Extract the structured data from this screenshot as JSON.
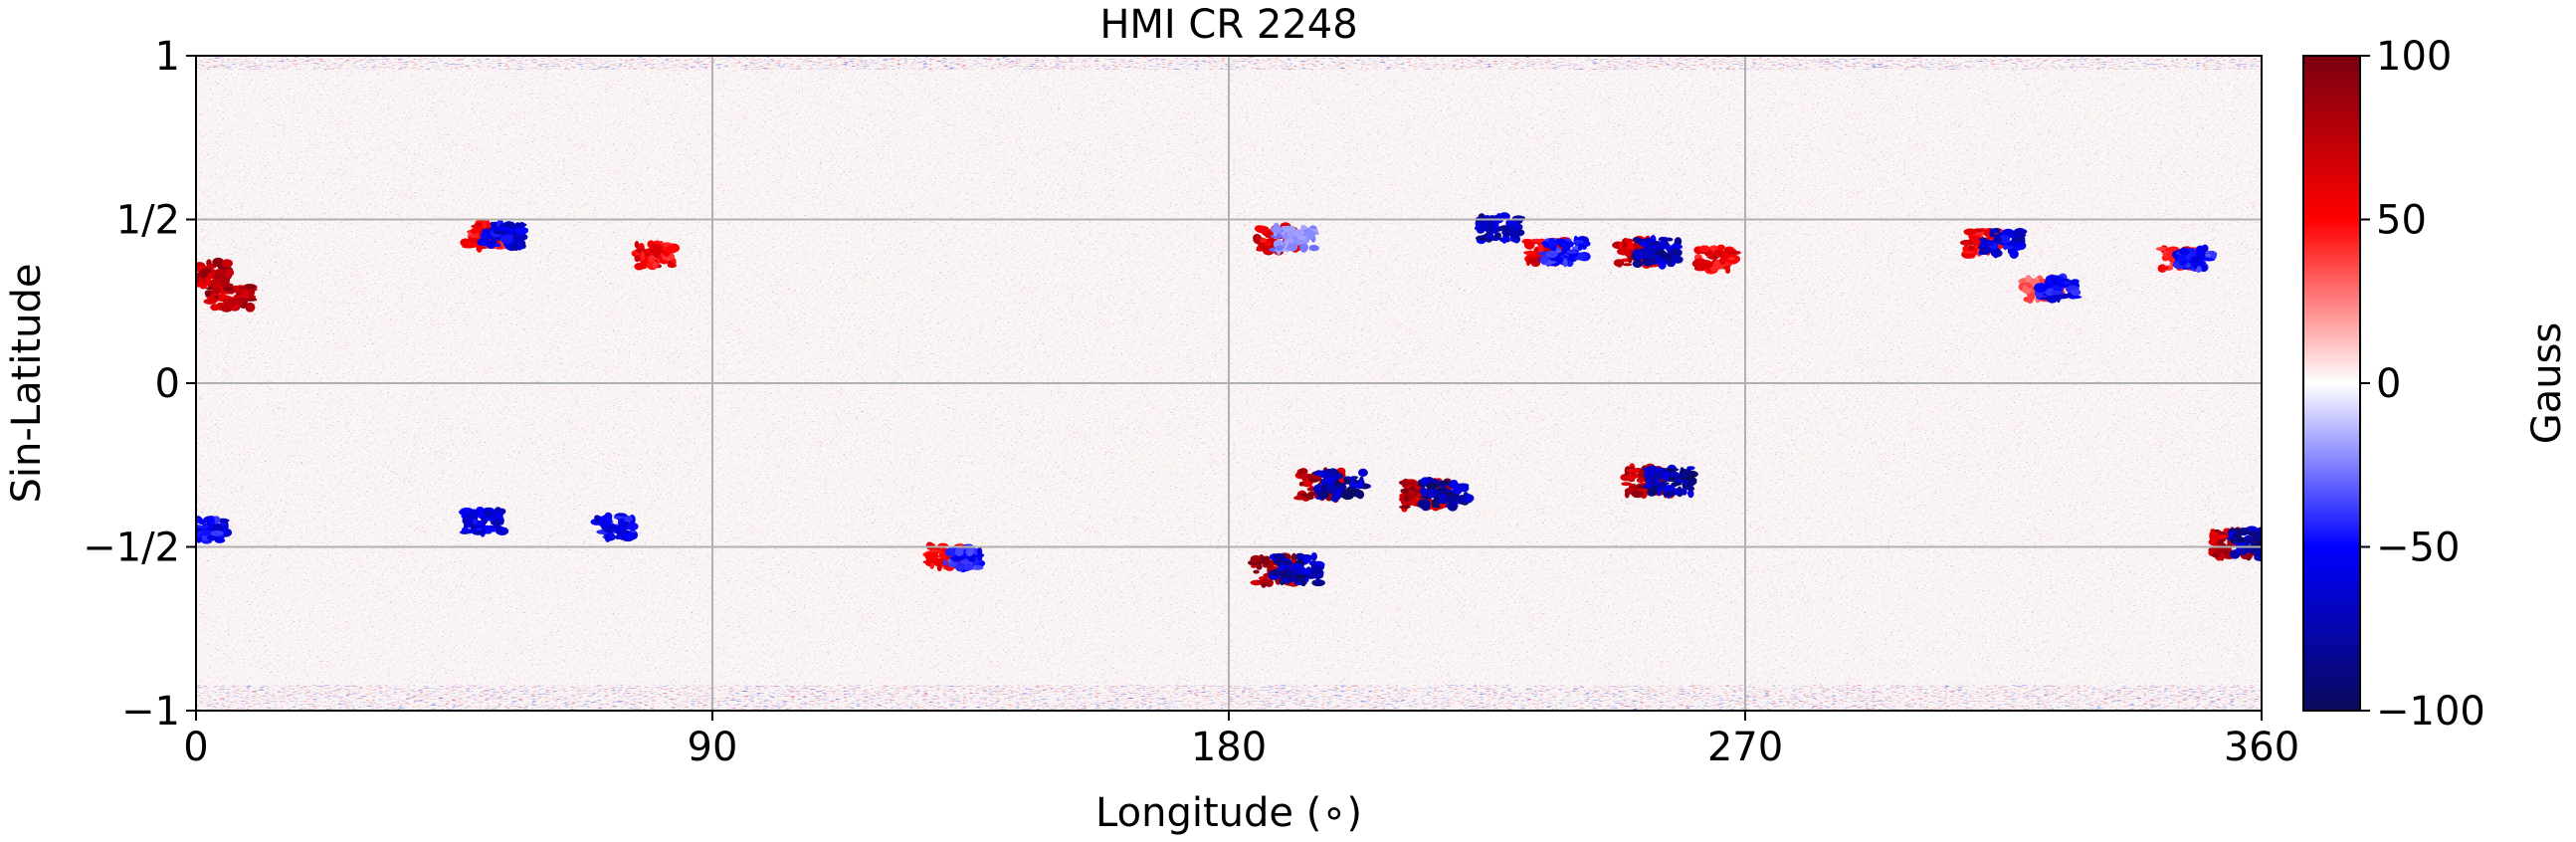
{
  "chart_data": {
    "type": "heatmap",
    "title": "HMI CR 2248",
    "xlabel": "Longitude (∘)",
    "ylabel": "Sin-Latitude",
    "xlim": [
      0,
      360
    ],
    "ylim": [
      -1,
      1
    ],
    "x_ticks": [
      {
        "value": 0,
        "label": "0"
      },
      {
        "value": 90,
        "label": "90"
      },
      {
        "value": 180,
        "label": "180"
      },
      {
        "value": 270,
        "label": "270"
      },
      {
        "value": 360,
        "label": "360"
      }
    ],
    "y_ticks": [
      {
        "value": -1,
        "label": "−1"
      },
      {
        "value": -0.5,
        "label": "−1/2"
      },
      {
        "value": 0,
        "label": "0"
      },
      {
        "value": 0.5,
        "label": "1/2"
      },
      {
        "value": 1,
        "label": "1"
      }
    ],
    "grid": true,
    "colorbar": {
      "label": "Gauss",
      "range": [
        -100,
        100
      ],
      "ticks": [
        {
          "value": 100,
          "label": "100"
        },
        {
          "value": 50,
          "label": "50"
        },
        {
          "value": 0,
          "label": "0"
        },
        {
          "value": -50,
          "label": "−50"
        },
        {
          "value": -100,
          "label": "−100"
        }
      ],
      "colormap": [
        "#0a0a5c",
        "#0000ff",
        "#ffffff",
        "#ff0000",
        "#7a0010"
      ]
    },
    "active_regions": [
      {
        "lon": 2,
        "sinlat": 0.33,
        "positive": 0,
        "negative": 100
      },
      {
        "lon": 6,
        "sinlat": 0.27,
        "positive": 100,
        "negative": 0
      },
      {
        "lon": 52,
        "sinlat": 0.45,
        "positive": 70,
        "negative": -80
      },
      {
        "lon": 80,
        "sinlat": 0.39,
        "positive": 70,
        "negative": 0
      },
      {
        "lon": 190,
        "sinlat": 0.44,
        "positive": 80,
        "negative": -30
      },
      {
        "lon": 227,
        "sinlat": 0.47,
        "positive": 0,
        "negative": -90
      },
      {
        "lon": 237,
        "sinlat": 0.4,
        "positive": 80,
        "negative": -60
      },
      {
        "lon": 253,
        "sinlat": 0.4,
        "positive": 90,
        "negative": -90
      },
      {
        "lon": 265,
        "sinlat": 0.38,
        "positive": 70,
        "negative": 0
      },
      {
        "lon": 313,
        "sinlat": 0.43,
        "positive": 70,
        "negative": -80
      },
      {
        "lon": 323,
        "sinlat": 0.29,
        "positive": 40,
        "negative": -70
      },
      {
        "lon": 347,
        "sinlat": 0.38,
        "positive": 60,
        "negative": -60
      },
      {
        "lon": 198,
        "sinlat": -0.31,
        "positive": 100,
        "negative": -100
      },
      {
        "lon": 216,
        "sinlat": -0.34,
        "positive": 100,
        "negative": -100
      },
      {
        "lon": 255,
        "sinlat": -0.3,
        "positive": 100,
        "negative": -100
      },
      {
        "lon": 190,
        "sinlat": -0.57,
        "positive": 100,
        "negative": -100
      },
      {
        "lon": 357,
        "sinlat": -0.49,
        "positive": 100,
        "negative": -100
      },
      {
        "lon": 50,
        "sinlat": -0.42,
        "positive": 0,
        "negative": -80
      },
      {
        "lon": 73,
        "sinlat": -0.44,
        "positive": 0,
        "negative": -70
      },
      {
        "lon": 132,
        "sinlat": -0.53,
        "positive": 70,
        "negative": -60
      },
      {
        "lon": 2,
        "sinlat": -0.45,
        "positive": 0,
        "negative": -70
      }
    ]
  }
}
